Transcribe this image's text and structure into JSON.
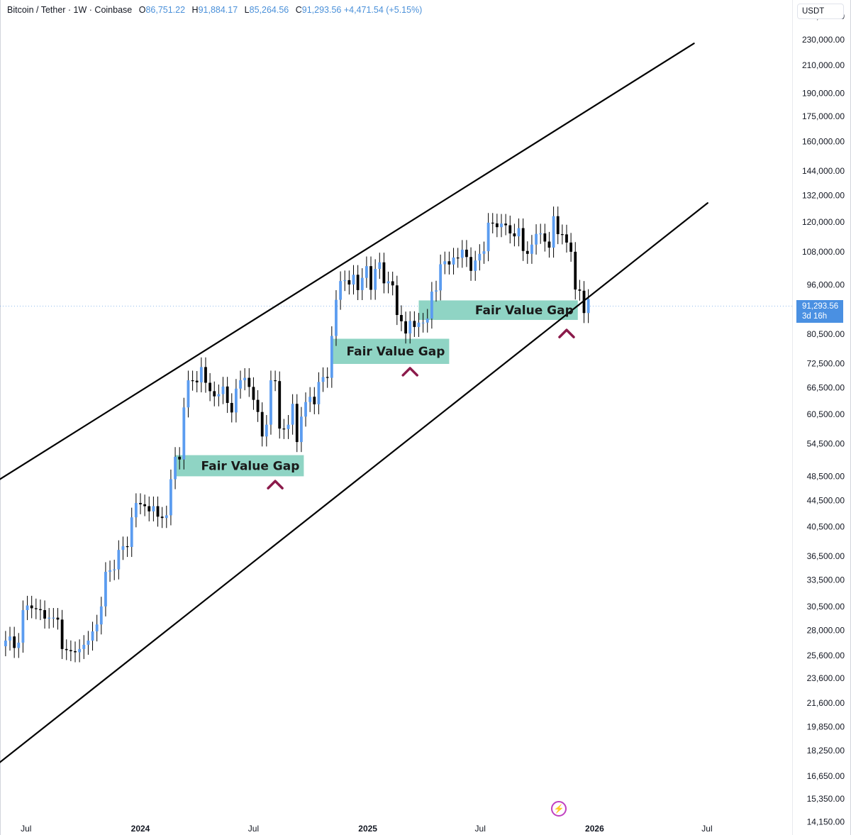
{
  "header": {
    "symbol": "Bitcoin / Tether · 1W · Coinbase",
    "open_label": "O",
    "open": "86,751.22",
    "high_label": "H",
    "high": "91,884.17",
    "low_label": "L",
    "low": "85,264.56",
    "close_label": "C",
    "close": "91,293.56",
    "change": "+4,471.54 (+5.15%)"
  },
  "currency": "USDT",
  "last_price": {
    "price": "91,293.56",
    "countdown": "3d 16h"
  },
  "colors": {
    "up": "#5b9cf0",
    "down": "#000000",
    "fvg": "#8fd4c4",
    "marker": "#8b1a4a",
    "accent": "#4a90e2"
  },
  "icons": {
    "alert": "lightning-icon"
  },
  "chart_data": {
    "type": "candlestick",
    "y_scale": "log",
    "ylim": [
      13500,
      265000
    ],
    "y_ticks": [
      "250,000.00",
      "230,000.00",
      "210,000.00",
      "190,000.00",
      "175,000.00",
      "160,000.00",
      "144,000.00",
      "132,000.00",
      "120,000.00",
      "108,000.00",
      "96,000.00",
      "80,500.00",
      "72,500.00",
      "66,500.00",
      "60,500.00",
      "54,500.00",
      "48,500.00",
      "44,500.00",
      "40,500.00",
      "36,500.00",
      "33,500.00",
      "30,500.00",
      "28,000.00",
      "25,600.00",
      "23,600.00",
      "21,600.00",
      "19,850.00",
      "18,250.00",
      "16,650.00",
      "15,350.00",
      "14,150.00"
    ],
    "x_ticks": [
      "Jul",
      "2024",
      "Jul",
      "2025",
      "Jul",
      "2026",
      "Jul"
    ],
    "x_tick_dates": [
      "2023-07-01",
      "2024-01-01",
      "2024-07-01",
      "2025-01-01",
      "2025-07-01",
      "2026-01-01",
      "2026-07-01"
    ],
    "xlim": [
      "2023-05-20",
      "2026-11-15"
    ],
    "candles_start": "2023-05-29",
    "candles_interval_days": 7,
    "candles_close": [
      27000,
      27400,
      26300,
      26800,
      30100,
      30600,
      30300,
      30200,
      30100,
      29200,
      29300,
      29300,
      29100,
      26200,
      26100,
      26000,
      25900,
      26200,
      26600,
      27000,
      27900,
      28600,
      30500,
      34500,
      34700,
      34800,
      37300,
      37800,
      37700,
      41900,
      44100,
      43900,
      43600,
      42800,
      43600,
      42000,
      41800,
      42200,
      48000,
      52000,
      51500,
      62000,
      68300,
      68200,
      67800,
      71600,
      67700,
      65700,
      64500,
      65000,
      66800,
      63000,
      60900,
      66300,
      68300,
      68900,
      66700,
      63700,
      61000,
      55900,
      58300,
      68300,
      68100,
      57500,
      57400,
      58300,
      62800,
      54800,
      60000,
      63200,
      64400,
      62700,
      67900,
      69100,
      68900,
      80000,
      91000,
      97300,
      97600,
      96100,
      99500,
      94200,
      98400,
      102600,
      94300,
      101600,
      104000,
      96500,
      97200,
      95800,
      86200,
      84300,
      80700,
      84400,
      82600,
      83900,
      83900,
      85100,
      93700,
      94100,
      103300,
      104400,
      103200,
      105800,
      105700,
      108800,
      106000,
      100900,
      104700,
      107200,
      108200,
      119800,
      119500,
      117900,
      119400,
      118700,
      115300,
      114100,
      117500,
      108300,
      107200,
      110800,
      115100,
      115300,
      112000,
      109600,
      122600,
      115000,
      114900,
      111600,
      108000,
      94400,
      94000,
      86800,
      91300
    ],
    "channel_lines": [
      {
        "name": "upper",
        "points": [
          [
            "2023-05-20",
            48000
          ],
          [
            "2026-06-10",
            227000
          ]
        ]
      },
      {
        "name": "lower",
        "points": [
          [
            "2023-05-20",
            17500
          ],
          [
            "2026-07-02",
            128500
          ]
        ]
      }
    ],
    "annotations": [
      {
        "text": "Fair Value Gap",
        "from": "2024-02-26",
        "to": "2024-09-20",
        "low": 48500,
        "high": 52300
      },
      {
        "text": "Fair Value Gap",
        "from": "2024-11-04",
        "to": "2025-05-12",
        "low": 72400,
        "high": 79200
      },
      {
        "text": "Fair Value Gap",
        "from": "2025-03-24",
        "to": "2025-12-05",
        "low": 84700,
        "high": 90800
      }
    ],
    "markers": [
      {
        "date": "2024-08-05",
        "value": 47200
      },
      {
        "date": "2025-03-10",
        "value": 70600
      },
      {
        "date": "2025-11-17",
        "value": 80900
      }
    ]
  }
}
